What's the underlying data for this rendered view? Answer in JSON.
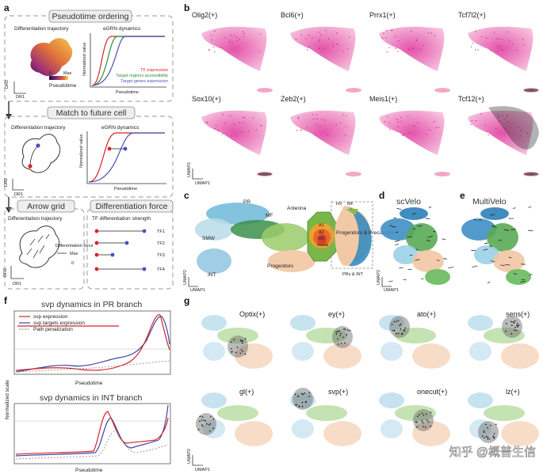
{
  "panels": {
    "a": {
      "label": "a",
      "sections": [
        {
          "title": "Pseudotime ordering",
          "left_title": "Differentiation trajectory",
          "right_title": "eGRN dynamics"
        },
        {
          "title": "Match to future cell",
          "left_title": "Differentiation trajectory",
          "right_title": "eGRN dynamics"
        },
        {
          "title": "Arrow grid",
          "left_title": "Differentiation trajectory"
        },
        {
          "title": "Differentiation force",
          "right_title": "TF differentiation strength"
        }
      ],
      "pseudotime_legend": {
        "label": "Pseudotime",
        "min": "0",
        "max": "Max"
      },
      "dr_x": "DR1",
      "dr_y": "DR2",
      "egrn_ylabel": "Normalized value",
      "egrn_xlabel": "Pseudotime",
      "legend_items": [
        {
          "text": "TF expression",
          "color": "#d9232a"
        },
        {
          "text": "Target regions accessibility",
          "color": "#2e8b3a"
        },
        {
          "text": "Target genes expression",
          "color": "#4a52b5"
        }
      ],
      "force_labels": {
        "force": "Differentiation force",
        "max": "Max",
        "zero": "0"
      },
      "tfs": [
        "TF1",
        "TF2",
        "TF3",
        "TF4"
      ]
    },
    "b": {
      "label": "b",
      "genes": [
        "Olig2(+)",
        "Bcl6(+)",
        "Prrx1(+)",
        "Tcf7l2(+)",
        "Sox10(+)",
        "Zeb2(+)",
        "Meis1(+)",
        "Tcf12(+)"
      ],
      "umap_x": "UMAP1",
      "umap_y": "UMAP2"
    },
    "c": {
      "label": "c",
      "regions": [
        "PR",
        "MF",
        "SMW",
        "INT",
        "Progenitors",
        "Antenna",
        "A1",
        "A2",
        "A3",
        "Arista",
        "HV",
        "MF",
        "Progenitors & Precursors",
        "PRs & INT"
      ],
      "umap_x": "UMAP1",
      "umap_y": "UMAP2"
    },
    "d": {
      "label": "d",
      "title": "scVelo",
      "umap_x": "UMAP1",
      "umap_y": "UMAP2"
    },
    "e": {
      "label": "e",
      "title": "MultiVelo"
    },
    "f": {
      "label": "f",
      "top_title": "svp dynamics in PR branch",
      "bottom_title": "svp dynamics in INT branch",
      "legend": [
        "svp expression",
        "svp targets expression",
        "Path penalization"
      ],
      "ylabel": "Normalized scale",
      "xlabel": "Pseudotime"
    },
    "g": {
      "label": "g",
      "genes": [
        "Optix(+)",
        "ey(+)",
        "ato(+)",
        "sens(+)",
        "gl(+)",
        "svp(+)",
        "onecut(+)",
        "lz(+)"
      ],
      "umap_x": "UMAP1",
      "umap_y": "UMAP2"
    }
  },
  "watermark": "知乎 @概普生信"
}
